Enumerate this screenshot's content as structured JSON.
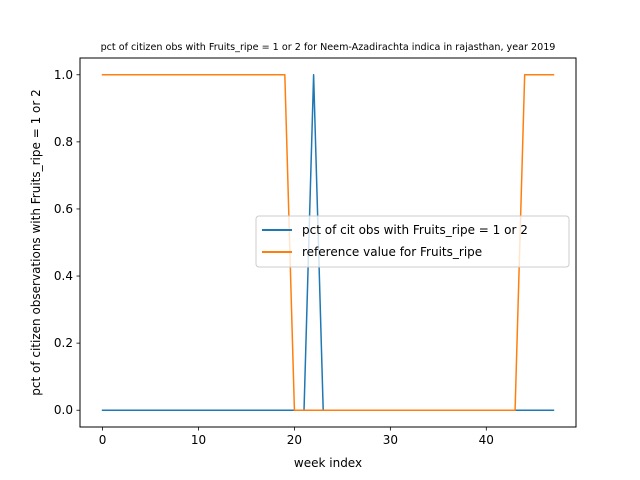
{
  "chart_data": {
    "type": "line",
    "title": "pct of citizen obs with Fruits_ripe = 1 or 2 for Neem-Azadirachta indica in rajasthan, year 2019",
    "xlabel": "week index",
    "ylabel": "pct of citizen observations with Fruits_ripe = 1 or 2",
    "xlim": [
      -2.35,
      49.35
    ],
    "ylim": [
      -0.05,
      1.05
    ],
    "x_ticks": [
      0,
      10,
      20,
      30,
      40
    ],
    "x_tick_labels": [
      "0",
      "10",
      "20",
      "30",
      "40"
    ],
    "y_ticks": [
      0.0,
      0.2,
      0.4,
      0.6,
      0.8,
      1.0
    ],
    "y_tick_labels": [
      "0.0",
      "0.2",
      "0.4",
      "0.6",
      "0.8",
      "1.0"
    ],
    "legend_position": "center-right",
    "grid": false,
    "series": [
      {
        "name": "pct of cit obs with Fruits_ripe = 1 or 2",
        "color": "#1f77b4",
        "x": [
          0,
          1,
          2,
          3,
          4,
          5,
          6,
          7,
          8,
          9,
          10,
          11,
          12,
          13,
          14,
          15,
          16,
          17,
          18,
          19,
          20,
          21,
          22,
          23,
          24,
          25,
          26,
          27,
          28,
          29,
          30,
          31,
          32,
          33,
          34,
          35,
          36,
          37,
          38,
          39,
          40,
          41,
          42,
          43,
          44,
          45,
          46,
          47
        ],
        "values": [
          0,
          0,
          0,
          0,
          0,
          0,
          0,
          0,
          0,
          0,
          0,
          0,
          0,
          0,
          0,
          0,
          0,
          0,
          0,
          0,
          0,
          0,
          1,
          0,
          0,
          0,
          0,
          0,
          0,
          0,
          0,
          0,
          0,
          0,
          0,
          0,
          0,
          0,
          0,
          0,
          0,
          0,
          0,
          0,
          0,
          0,
          0,
          0
        ]
      },
      {
        "name": "reference value for Fruits_ripe",
        "color": "#ff7f0e",
        "x": [
          0,
          1,
          2,
          3,
          4,
          5,
          6,
          7,
          8,
          9,
          10,
          11,
          12,
          13,
          14,
          15,
          16,
          17,
          18,
          19,
          20,
          21,
          22,
          23,
          24,
          25,
          26,
          27,
          28,
          29,
          30,
          31,
          32,
          33,
          34,
          35,
          36,
          37,
          38,
          39,
          40,
          41,
          42,
          43,
          44,
          45,
          46,
          47
        ],
        "values": [
          1,
          1,
          1,
          1,
          1,
          1,
          1,
          1,
          1,
          1,
          1,
          1,
          1,
          1,
          1,
          1,
          1,
          1,
          1,
          1,
          0,
          0,
          0,
          0,
          0,
          0,
          0,
          0,
          0,
          0,
          0,
          0,
          0,
          0,
          0,
          0,
          0,
          0,
          0,
          0,
          0,
          0,
          0,
          0,
          1,
          1,
          1,
          1
        ]
      }
    ]
  }
}
